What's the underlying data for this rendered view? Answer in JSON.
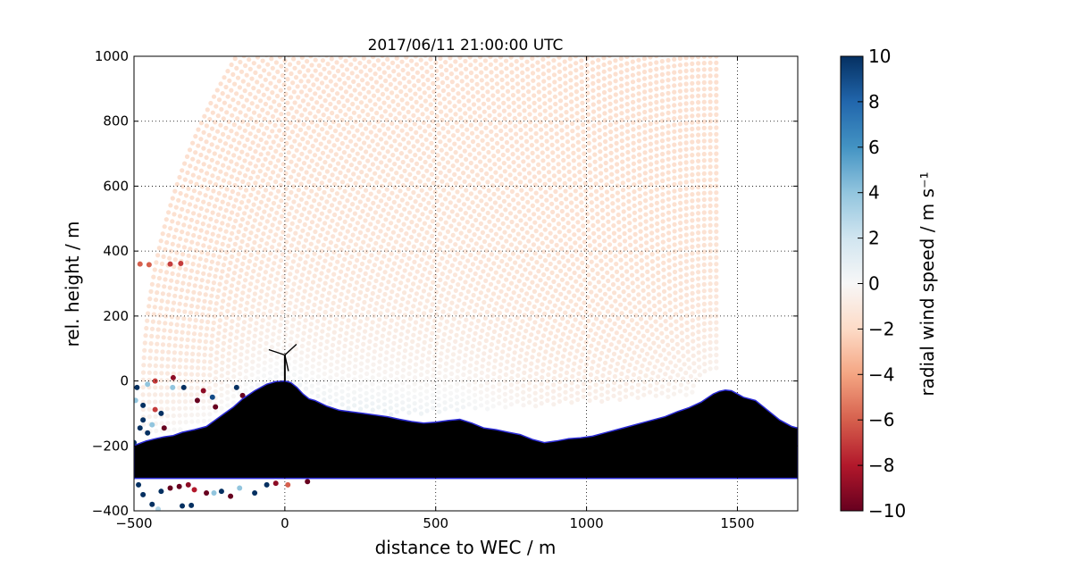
{
  "chart_data": {
    "type": "scatter",
    "title": "2017/06/11 21:00:00 UTC",
    "xlabel": "distance to WEC / m",
    "ylabel": "rel. height / m",
    "xlim": [
      -500,
      1700
    ],
    "ylim": [
      -400,
      1000
    ],
    "x_ticks": [
      -500,
      0,
      500,
      1000,
      1500
    ],
    "x_tick_labels": [
      "−500",
      "0",
      "500",
      "1000",
      "1500"
    ],
    "y_ticks": [
      -400,
      -200,
      0,
      200,
      400,
      600,
      800,
      1000
    ],
    "y_tick_labels": [
      "−400",
      "−200",
      "0",
      "200",
      "400",
      "600",
      "800",
      "1000"
    ],
    "grid": true,
    "grid_style": "dotted",
    "colormap": "RdBu",
    "colors": {
      "negative_end": "#67001f",
      "mid": "#f7f7f7",
      "positive_end": "#053061"
    },
    "colorbar": {
      "label": "radial wind speed / m s⁻¹",
      "range": [
        -10,
        10
      ],
      "ticks": [
        10,
        8,
        6,
        4,
        2,
        0,
        -2,
        -4,
        -6,
        -8,
        -10
      ],
      "tick_labels": [
        "10",
        "8",
        "6",
        "4",
        "2",
        "0",
        "−2",
        "−4",
        "−6",
        "−8",
        "−10"
      ]
    },
    "scan": {
      "origin": [
        1430,
        -40
      ],
      "max_range_m": 1900,
      "description_values": "radial wind speed field: about -1.5 m/s aloft to about +0.5 m/s near terrain"
    },
    "terrain_profile": {
      "x": [
        -500,
        -490,
        -460,
        -430,
        -400,
        -370,
        -340,
        -300,
        -260,
        -230,
        -200,
        -170,
        -140,
        -100,
        -60,
        -30,
        0,
        20,
        40,
        60,
        80,
        100,
        140,
        180,
        220,
        260,
        300,
        340,
        380,
        420,
        460,
        500,
        540,
        580,
        620,
        660,
        700,
        740,
        780,
        820,
        860,
        900,
        940,
        980,
        1020,
        1060,
        1100,
        1140,
        1180,
        1220,
        1260,
        1300,
        1340,
        1380,
        1420,
        1440,
        1460,
        1480,
        1500,
        1520,
        1560,
        1600,
        1640,
        1680,
        1700
      ],
      "y": [
        -200,
        -195,
        -185,
        -178,
        -172,
        -168,
        -158,
        -150,
        -140,
        -120,
        -100,
        -80,
        -55,
        -30,
        -10,
        -2,
        0,
        -5,
        -20,
        -40,
        -55,
        -60,
        -78,
        -90,
        -95,
        -100,
        -105,
        -110,
        -118,
        -125,
        -130,
        -127,
        -122,
        -118,
        -130,
        -145,
        -150,
        -158,
        -165,
        -180,
        -190,
        -185,
        -178,
        -175,
        -170,
        -160,
        -150,
        -140,
        -130,
        -120,
        -110,
        -95,
        -82,
        -65,
        -40,
        -32,
        -28,
        -30,
        -40,
        -50,
        -60,
        -90,
        -120,
        -140,
        -145
      ],
      "baseline": -300,
      "fill_color": "#000000",
      "edge_color": "#2b2bd6"
    },
    "wec": {
      "x": 0,
      "hub_height": 80
    },
    "noise_points": [
      {
        "x": -490,
        "y": -20,
        "v": 10
      },
      {
        "x": -455,
        "y": -10,
        "v": 4
      },
      {
        "x": -430,
        "y": 0,
        "v": -7
      },
      {
        "x": -372,
        "y": -20,
        "v": 4
      },
      {
        "x": -370,
        "y": 10,
        "v": -9
      },
      {
        "x": -335,
        "y": -20,
        "v": 10
      },
      {
        "x": -290,
        "y": -60,
        "v": -10
      },
      {
        "x": -270,
        "y": -30,
        "v": -9
      },
      {
        "x": -240,
        "y": -50,
        "v": 9
      },
      {
        "x": -230,
        "y": -80,
        "v": -10
      },
      {
        "x": -160,
        "y": -20,
        "v": 10
      },
      {
        "x": -140,
        "y": -45,
        "v": -10
      },
      {
        "x": -495,
        "y": -60,
        "v": 4
      },
      {
        "x": -470,
        "y": -75,
        "v": 10
      },
      {
        "x": -430,
        "y": -88,
        "v": -7
      },
      {
        "x": -410,
        "y": -100,
        "v": 10
      },
      {
        "x": -470,
        "y": -120,
        "v": 10
      },
      {
        "x": -440,
        "y": -135,
        "v": 4
      },
      {
        "x": -400,
        "y": -145,
        "v": -10
      },
      {
        "x": -480,
        "y": -145,
        "v": 10
      },
      {
        "x": -455,
        "y": -160,
        "v": 10
      },
      {
        "x": -500,
        "y": -190,
        "v": 10
      },
      {
        "x": -480,
        "y": 360,
        "v": -6
      },
      {
        "x": -450,
        "y": 358,
        "v": -6
      },
      {
        "x": -380,
        "y": 360,
        "v": -7
      },
      {
        "x": -345,
        "y": 362,
        "v": -7
      },
      {
        "x": -485,
        "y": -320,
        "v": 10
      },
      {
        "x": -470,
        "y": -350,
        "v": 10
      },
      {
        "x": -440,
        "y": -380,
        "v": 10
      },
      {
        "x": -410,
        "y": -340,
        "v": 10
      },
      {
        "x": -380,
        "y": -330,
        "v": -10
      },
      {
        "x": -350,
        "y": -325,
        "v": -10
      },
      {
        "x": -320,
        "y": -320,
        "v": -9
      },
      {
        "x": -300,
        "y": -335,
        "v": -8
      },
      {
        "x": -260,
        "y": -345,
        "v": -10
      },
      {
        "x": -235,
        "y": -345,
        "v": 4
      },
      {
        "x": -210,
        "y": -340,
        "v": 10
      },
      {
        "x": -180,
        "y": -355,
        "v": -10
      },
      {
        "x": -150,
        "y": -330,
        "v": 4
      },
      {
        "x": -100,
        "y": -345,
        "v": 10
      },
      {
        "x": -60,
        "y": -320,
        "v": 10
      },
      {
        "x": -30,
        "y": -315,
        "v": -9
      },
      {
        "x": 10,
        "y": -320,
        "v": -6
      },
      {
        "x": 75,
        "y": -310,
        "v": -10
      },
      {
        "x": -340,
        "y": -385,
        "v": 10
      },
      {
        "x": -420,
        "y": -395,
        "v": 3
      },
      {
        "x": -310,
        "y": -383,
        "v": 10
      }
    ]
  }
}
